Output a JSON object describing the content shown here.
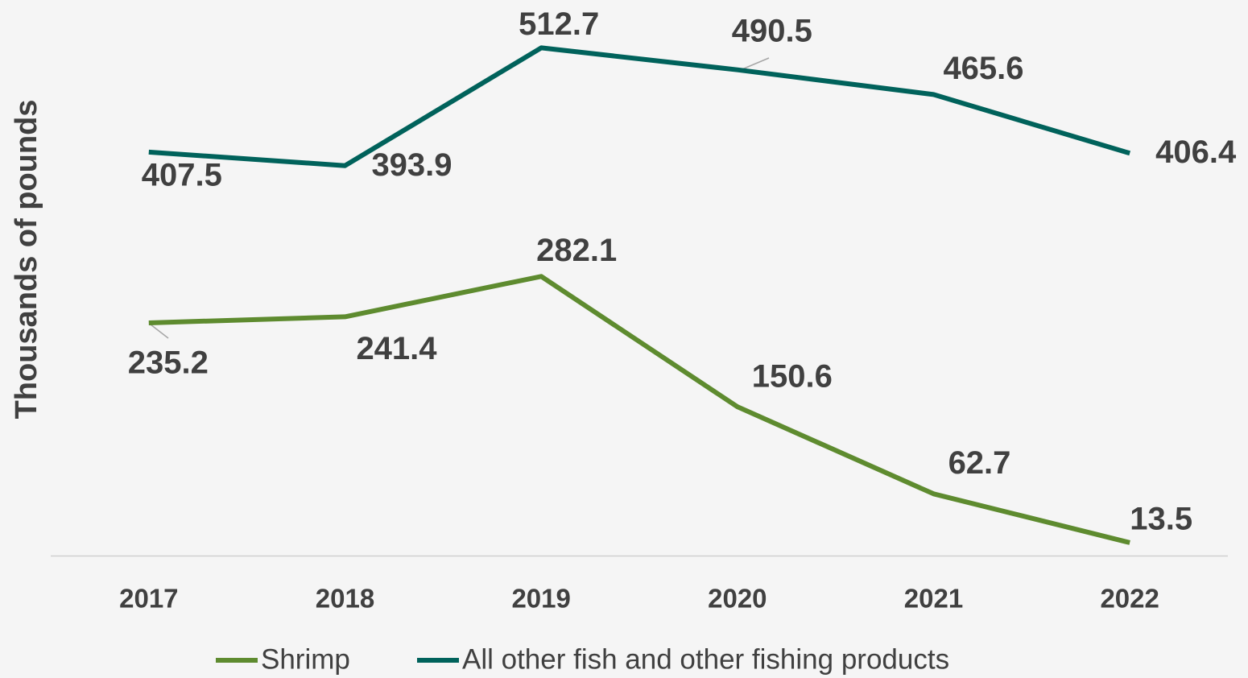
{
  "chart_data": {
    "type": "line",
    "y_label": "Thousands of pounds",
    "categories": [
      "2017",
      "2018",
      "2019",
      "2020",
      "2021",
      "2022"
    ],
    "ylim": [
      0,
      560
    ],
    "legend": "bottom",
    "series": [
      {
        "name": "Shrimp",
        "color": "#5e8b2f",
        "values": [
          235.2,
          241.4,
          282.1,
          150.6,
          62.7,
          13.5
        ]
      },
      {
        "name": "All other fish and other fishing products",
        "color": "#00625b",
        "values": [
          407.5,
          393.9,
          512.7,
          490.5,
          465.6,
          406.4
        ]
      }
    ]
  }
}
